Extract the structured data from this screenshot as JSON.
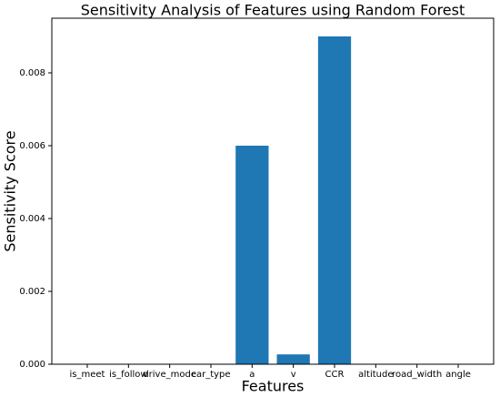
{
  "chart_data": {
    "type": "bar",
    "title": "Sensitivity Analysis of Features using Random Forest",
    "x_label": "Features",
    "y_label": "Sensitivity Score",
    "categories": [
      "is_meet",
      "is_follow",
      "drive_mode",
      "car_type",
      "a",
      "v",
      "CCR",
      "altitude",
      "road_width",
      "angle"
    ],
    "values": [
      0,
      0,
      0,
      0,
      0.006,
      0.00027,
      0.009,
      0,
      0,
      0
    ],
    "color": "#1f77b4",
    "ylim": [
      0,
      0.0095
    ],
    "yticks": [
      {
        "value": 0,
        "label": "0.000"
      },
      {
        "value": 0.002,
        "label": "0.002"
      },
      {
        "value": 0.004,
        "label": "0.004"
      },
      {
        "value": 0.006,
        "label": "0.006"
      },
      {
        "value": 0.008,
        "label": "0.008"
      }
    ],
    "grid": false
  }
}
